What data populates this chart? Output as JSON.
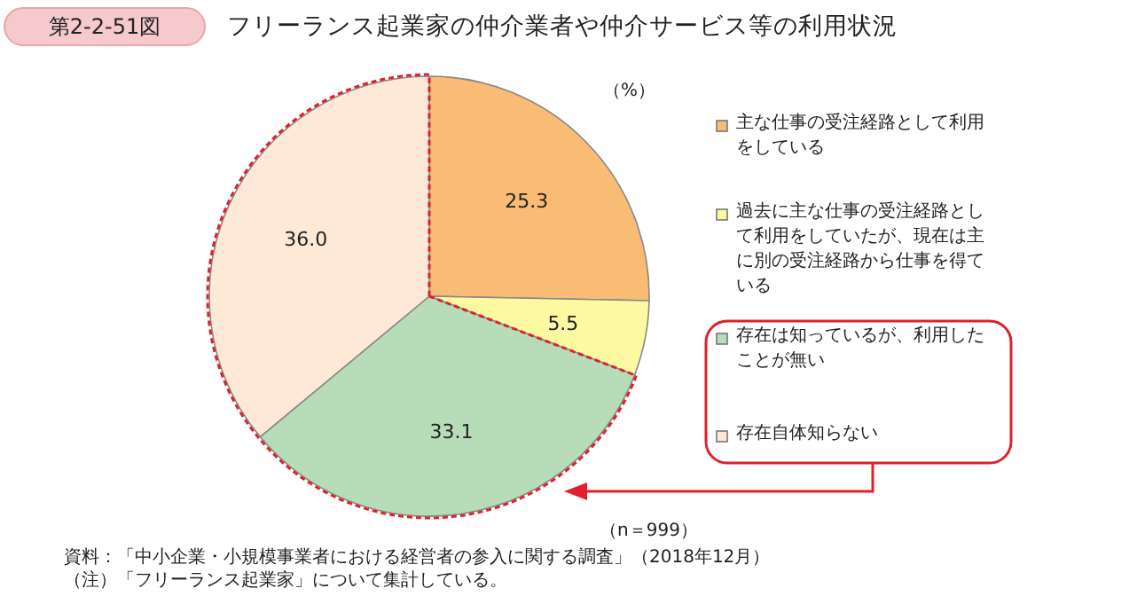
{
  "chart_data": {
    "type": "pie",
    "title": "フリーランス起業家の仲介業者や仲介サービス等の利用状況",
    "categories": [
      "主な仕事の受注経路として利用をしている",
      "過去に主な仕事の受注経路として利用をしていたが、現在は主に別の受注経路から仕事を得ている",
      "存在は知っているが、利用したことが無い",
      "存在自体知らない"
    ],
    "values": [
      25.3,
      5.5,
      33.1,
      36.0
    ],
    "colors": [
      "#f8bc74",
      "#fdf9a2",
      "#b6dcb8",
      "#fde9d5"
    ],
    "value_labels": [
      "25.3",
      "5.5",
      "33.1",
      "36.0"
    ],
    "legend": "right",
    "annotations": [
      "第2-2-51図",
      "（%）",
      "（n＝999）",
      "資料：「中小企業・小規模事業者における経営者の参入に関する調査」（2018年12月）",
      "（注）「フリーランス起業家」について集計している。"
    ]
  }
}
